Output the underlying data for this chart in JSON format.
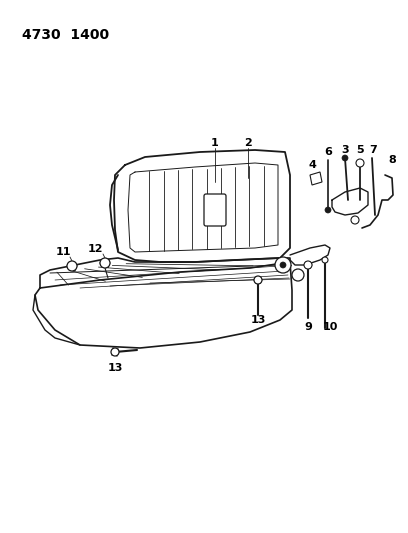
{
  "title": "4730  1400",
  "background_color": "#ffffff",
  "line_color": "#1a1a1a",
  "label_color": "#000000",
  "fig_width": 4.08,
  "fig_height": 5.33,
  "dpi": 100
}
